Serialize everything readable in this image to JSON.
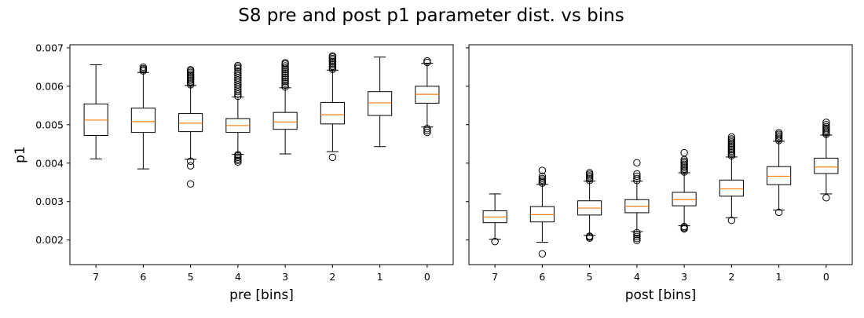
{
  "figure": {
    "title": "S8 pre and post p1 parameter dist. vs bins",
    "ylabel": "p1",
    "yticks": [
      "0.002",
      "0.003",
      "0.004",
      "0.005",
      "0.006",
      "0.007"
    ],
    "colors": {
      "box": "#000000",
      "median": "#ff7f0e",
      "flier": "#000000",
      "background": "#ffffff"
    }
  },
  "chart_data": [
    {
      "type": "boxplot",
      "xlabel": "pre [bins]",
      "ylabel": "p1",
      "categories": [
        "7",
        "6",
        "5",
        "4",
        "3",
        "2",
        "1",
        "0"
      ],
      "ylim": [
        0.00136,
        0.00708
      ],
      "sharey": true,
      "grid": false,
      "boxes": [
        {
          "category": "7",
          "whisker_low": 0.00411,
          "q1": 0.00472,
          "median": 0.00512,
          "q3": 0.00554,
          "whisker_high": 0.00656,
          "fliers": []
        },
        {
          "category": "6",
          "whisker_low": 0.00385,
          "q1": 0.0048,
          "median": 0.00508,
          "q3": 0.00543,
          "whisker_high": 0.00636,
          "fliers": [
            0.0064,
            0.00643,
            0.00646,
            0.0065
          ]
        },
        {
          "category": "5",
          "whisker_low": 0.0041,
          "q1": 0.00482,
          "median": 0.00504,
          "q3": 0.00529,
          "whisker_high": 0.00602,
          "fliers": [
            0.00346,
            0.00393,
            0.00405,
            0.00604,
            0.00608,
            0.00612,
            0.00616,
            0.0062,
            0.00624,
            0.00628,
            0.00632,
            0.00636,
            0.0064,
            0.00643
          ]
        },
        {
          "category": "4",
          "whisker_low": 0.00423,
          "q1": 0.0048,
          "median": 0.00498,
          "q3": 0.00516,
          "whisker_high": 0.00572,
          "fliers": [
            0.00403,
            0.00407,
            0.00411,
            0.00415,
            0.00419,
            0.00422,
            0.00574,
            0.0058,
            0.00586,
            0.00592,
            0.00598,
            0.00604,
            0.0061,
            0.00616,
            0.00622,
            0.00628,
            0.00634,
            0.0064,
            0.00646,
            0.0065,
            0.00654
          ]
        },
        {
          "category": "3",
          "whisker_low": 0.00424,
          "q1": 0.00488,
          "median": 0.00507,
          "q3": 0.00532,
          "whisker_high": 0.00596,
          "fliers": [
            0.00598,
            0.00603,
            0.00608,
            0.00613,
            0.00618,
            0.00623,
            0.00628,
            0.00633,
            0.00638,
            0.00643,
            0.00648,
            0.00653,
            0.00658,
            0.00661
          ]
        },
        {
          "category": "2",
          "whisker_low": 0.0043,
          "q1": 0.00502,
          "median": 0.00526,
          "q3": 0.00558,
          "whisker_high": 0.00642,
          "fliers": [
            0.00415,
            0.00644,
            0.00648,
            0.00652,
            0.00656,
            0.0066,
            0.00664,
            0.00668,
            0.00672,
            0.00676,
            0.00679
          ]
        },
        {
          "category": "1",
          "whisker_low": 0.00443,
          "q1": 0.00524,
          "median": 0.00557,
          "q3": 0.00586,
          "whisker_high": 0.00676,
          "fliers": []
        },
        {
          "category": "0",
          "whisker_low": 0.00494,
          "q1": 0.00556,
          "median": 0.00579,
          "q3": 0.006,
          "whisker_high": 0.0066,
          "fliers": [
            0.0048,
            0.00485,
            0.0049,
            0.00662,
            0.00666
          ]
        }
      ]
    },
    {
      "type": "boxplot",
      "xlabel": "post [bins]",
      "ylabel": "",
      "categories": [
        "7",
        "6",
        "5",
        "4",
        "3",
        "2",
        "1",
        "0"
      ],
      "ylim": [
        0.00136,
        0.00708
      ],
      "sharey": true,
      "grid": false,
      "boxes": [
        {
          "category": "7",
          "whisker_low": 0.00202,
          "q1": 0.00245,
          "median": 0.0026,
          "q3": 0.00276,
          "whisker_high": 0.0032,
          "fliers": [
            0.00196
          ]
        },
        {
          "category": "6",
          "whisker_low": 0.00194,
          "q1": 0.00247,
          "median": 0.00266,
          "q3": 0.00287,
          "whisker_high": 0.00345,
          "fliers": [
            0.00164,
            0.00348,
            0.00352,
            0.00356,
            0.0036,
            0.00366,
            0.00381
          ]
        },
        {
          "category": "5",
          "whisker_low": 0.00212,
          "q1": 0.00265,
          "median": 0.00283,
          "q3": 0.00302,
          "whisker_high": 0.00353,
          "fliers": [
            0.00205,
            0.00208,
            0.0021,
            0.00355,
            0.00359,
            0.00363,
            0.00367,
            0.00371,
            0.00375
          ]
        },
        {
          "category": "4",
          "whisker_low": 0.00222,
          "q1": 0.00271,
          "median": 0.00288,
          "q3": 0.00305,
          "whisker_high": 0.00353,
          "fliers": [
            0.00199,
            0.00204,
            0.00209,
            0.00214,
            0.00219,
            0.00355,
            0.0036,
            0.00366,
            0.00372,
            0.00401
          ]
        },
        {
          "category": "3",
          "whisker_low": 0.00237,
          "q1": 0.00289,
          "median": 0.00305,
          "q3": 0.00324,
          "whisker_high": 0.00375,
          "fliers": [
            0.00229,
            0.00232,
            0.00235,
            0.00377,
            0.00381,
            0.00385,
            0.00389,
            0.00393,
            0.00397,
            0.00401,
            0.00405,
            0.00409,
            0.00427
          ]
        },
        {
          "category": "2",
          "whisker_low": 0.00258,
          "q1": 0.00314,
          "median": 0.00333,
          "q3": 0.00356,
          "whisker_high": 0.00416,
          "fliers": [
            0.00251,
            0.00419,
            0.00423,
            0.00427,
            0.00431,
            0.00435,
            0.00439,
            0.00443,
            0.00447,
            0.00451,
            0.00455,
            0.00459,
            0.00463,
            0.00468
          ]
        },
        {
          "category": "1",
          "whisker_low": 0.00278,
          "q1": 0.00344,
          "median": 0.00366,
          "q3": 0.00391,
          "whisker_high": 0.00457,
          "fliers": [
            0.00272,
            0.00459,
            0.00463,
            0.00467,
            0.00471,
            0.00475,
            0.00479
          ]
        },
        {
          "category": "0",
          "whisker_low": 0.0032,
          "q1": 0.00373,
          "median": 0.0039,
          "q3": 0.00413,
          "whisker_high": 0.00473,
          "fliers": [
            0.0031,
            0.00475,
            0.00479,
            0.00483,
            0.00487,
            0.00491,
            0.00495,
            0.005,
            0.00506
          ]
        }
      ]
    }
  ]
}
